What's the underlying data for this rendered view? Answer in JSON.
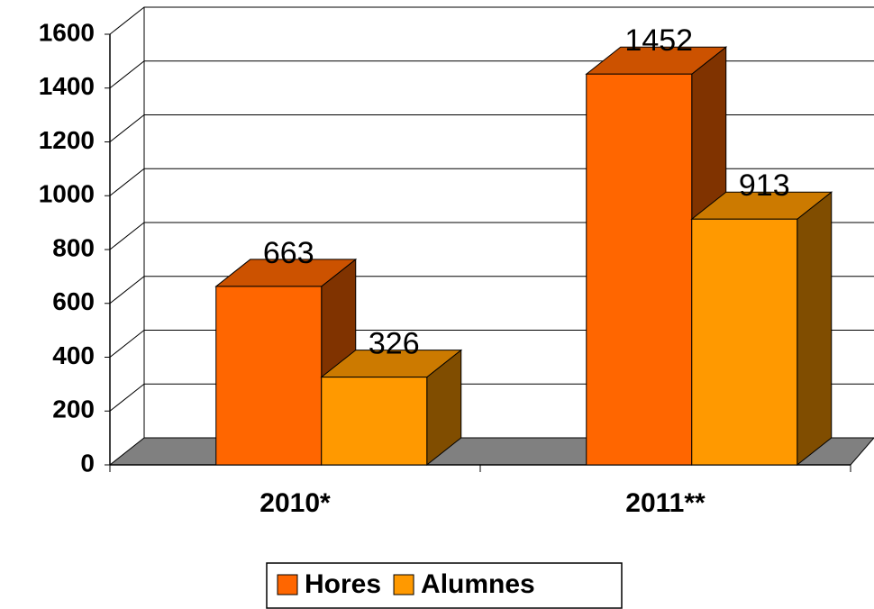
{
  "chart_data": {
    "type": "bar3d",
    "categories": [
      "2010*",
      "2011**"
    ],
    "series": [
      {
        "name": "Hores",
        "color": "#FF6600",
        "values": [
          663,
          1452
        ]
      },
      {
        "name": "Alumnes",
        "color": "#FF9900",
        "values": [
          326,
          913
        ]
      }
    ],
    "ylim": [
      0,
      1600
    ],
    "yticks": [
      0,
      200,
      400,
      600,
      800,
      1000,
      1200,
      1400,
      1600
    ],
    "grid": true,
    "legend": "bottom"
  }
}
